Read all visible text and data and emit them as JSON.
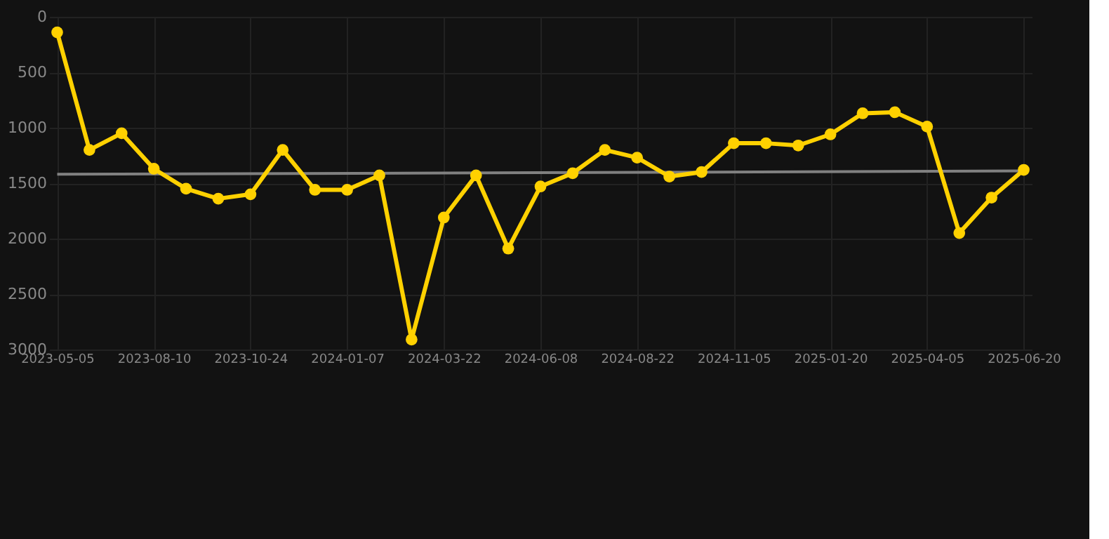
{
  "chart_data": {
    "type": "line",
    "categories": [
      "2023-05-05",
      null,
      null,
      "2023-08-10",
      null,
      null,
      "2023-10-24",
      null,
      null,
      "2024-01-07",
      null,
      null,
      "2024-03-22",
      null,
      null,
      "2024-06-08",
      null,
      null,
      "2024-08-22",
      null,
      null,
      "2024-11-05",
      null,
      null,
      "2025-01-20",
      null,
      null,
      "2025-04-05",
      null,
      null,
      "2025-06-20"
    ],
    "series": [
      {
        "color": "#ffd100",
        "values": [
          140,
          1200,
          1050,
          1370,
          1550,
          1640,
          1600,
          1200,
          1560,
          1560,
          1430,
          2910,
          1810,
          1430,
          2090,
          1530,
          1410,
          1200,
          1270,
          1440,
          1400,
          1140,
          1140,
          1160,
          1060,
          870,
          860,
          990,
          1950,
          1630,
          1380
        ],
        "marker": "circle"
      },
      {
        "type": "line",
        "color": "#808080",
        "values": [
          1420,
          null,
          null,
          null,
          null,
          null,
          null,
          null,
          null,
          null,
          null,
          null,
          null,
          null,
          null,
          null,
          null,
          null,
          null,
          null,
          null,
          null,
          null,
          null,
          null,
          null,
          null,
          null,
          null,
          null,
          1390
        ],
        "marker": "none"
      }
    ],
    "ylim": [
      3000,
      0
    ],
    "yticks": [
      0,
      500,
      1000,
      1500,
      2000,
      2500,
      3000
    ],
    "grid": true
  }
}
